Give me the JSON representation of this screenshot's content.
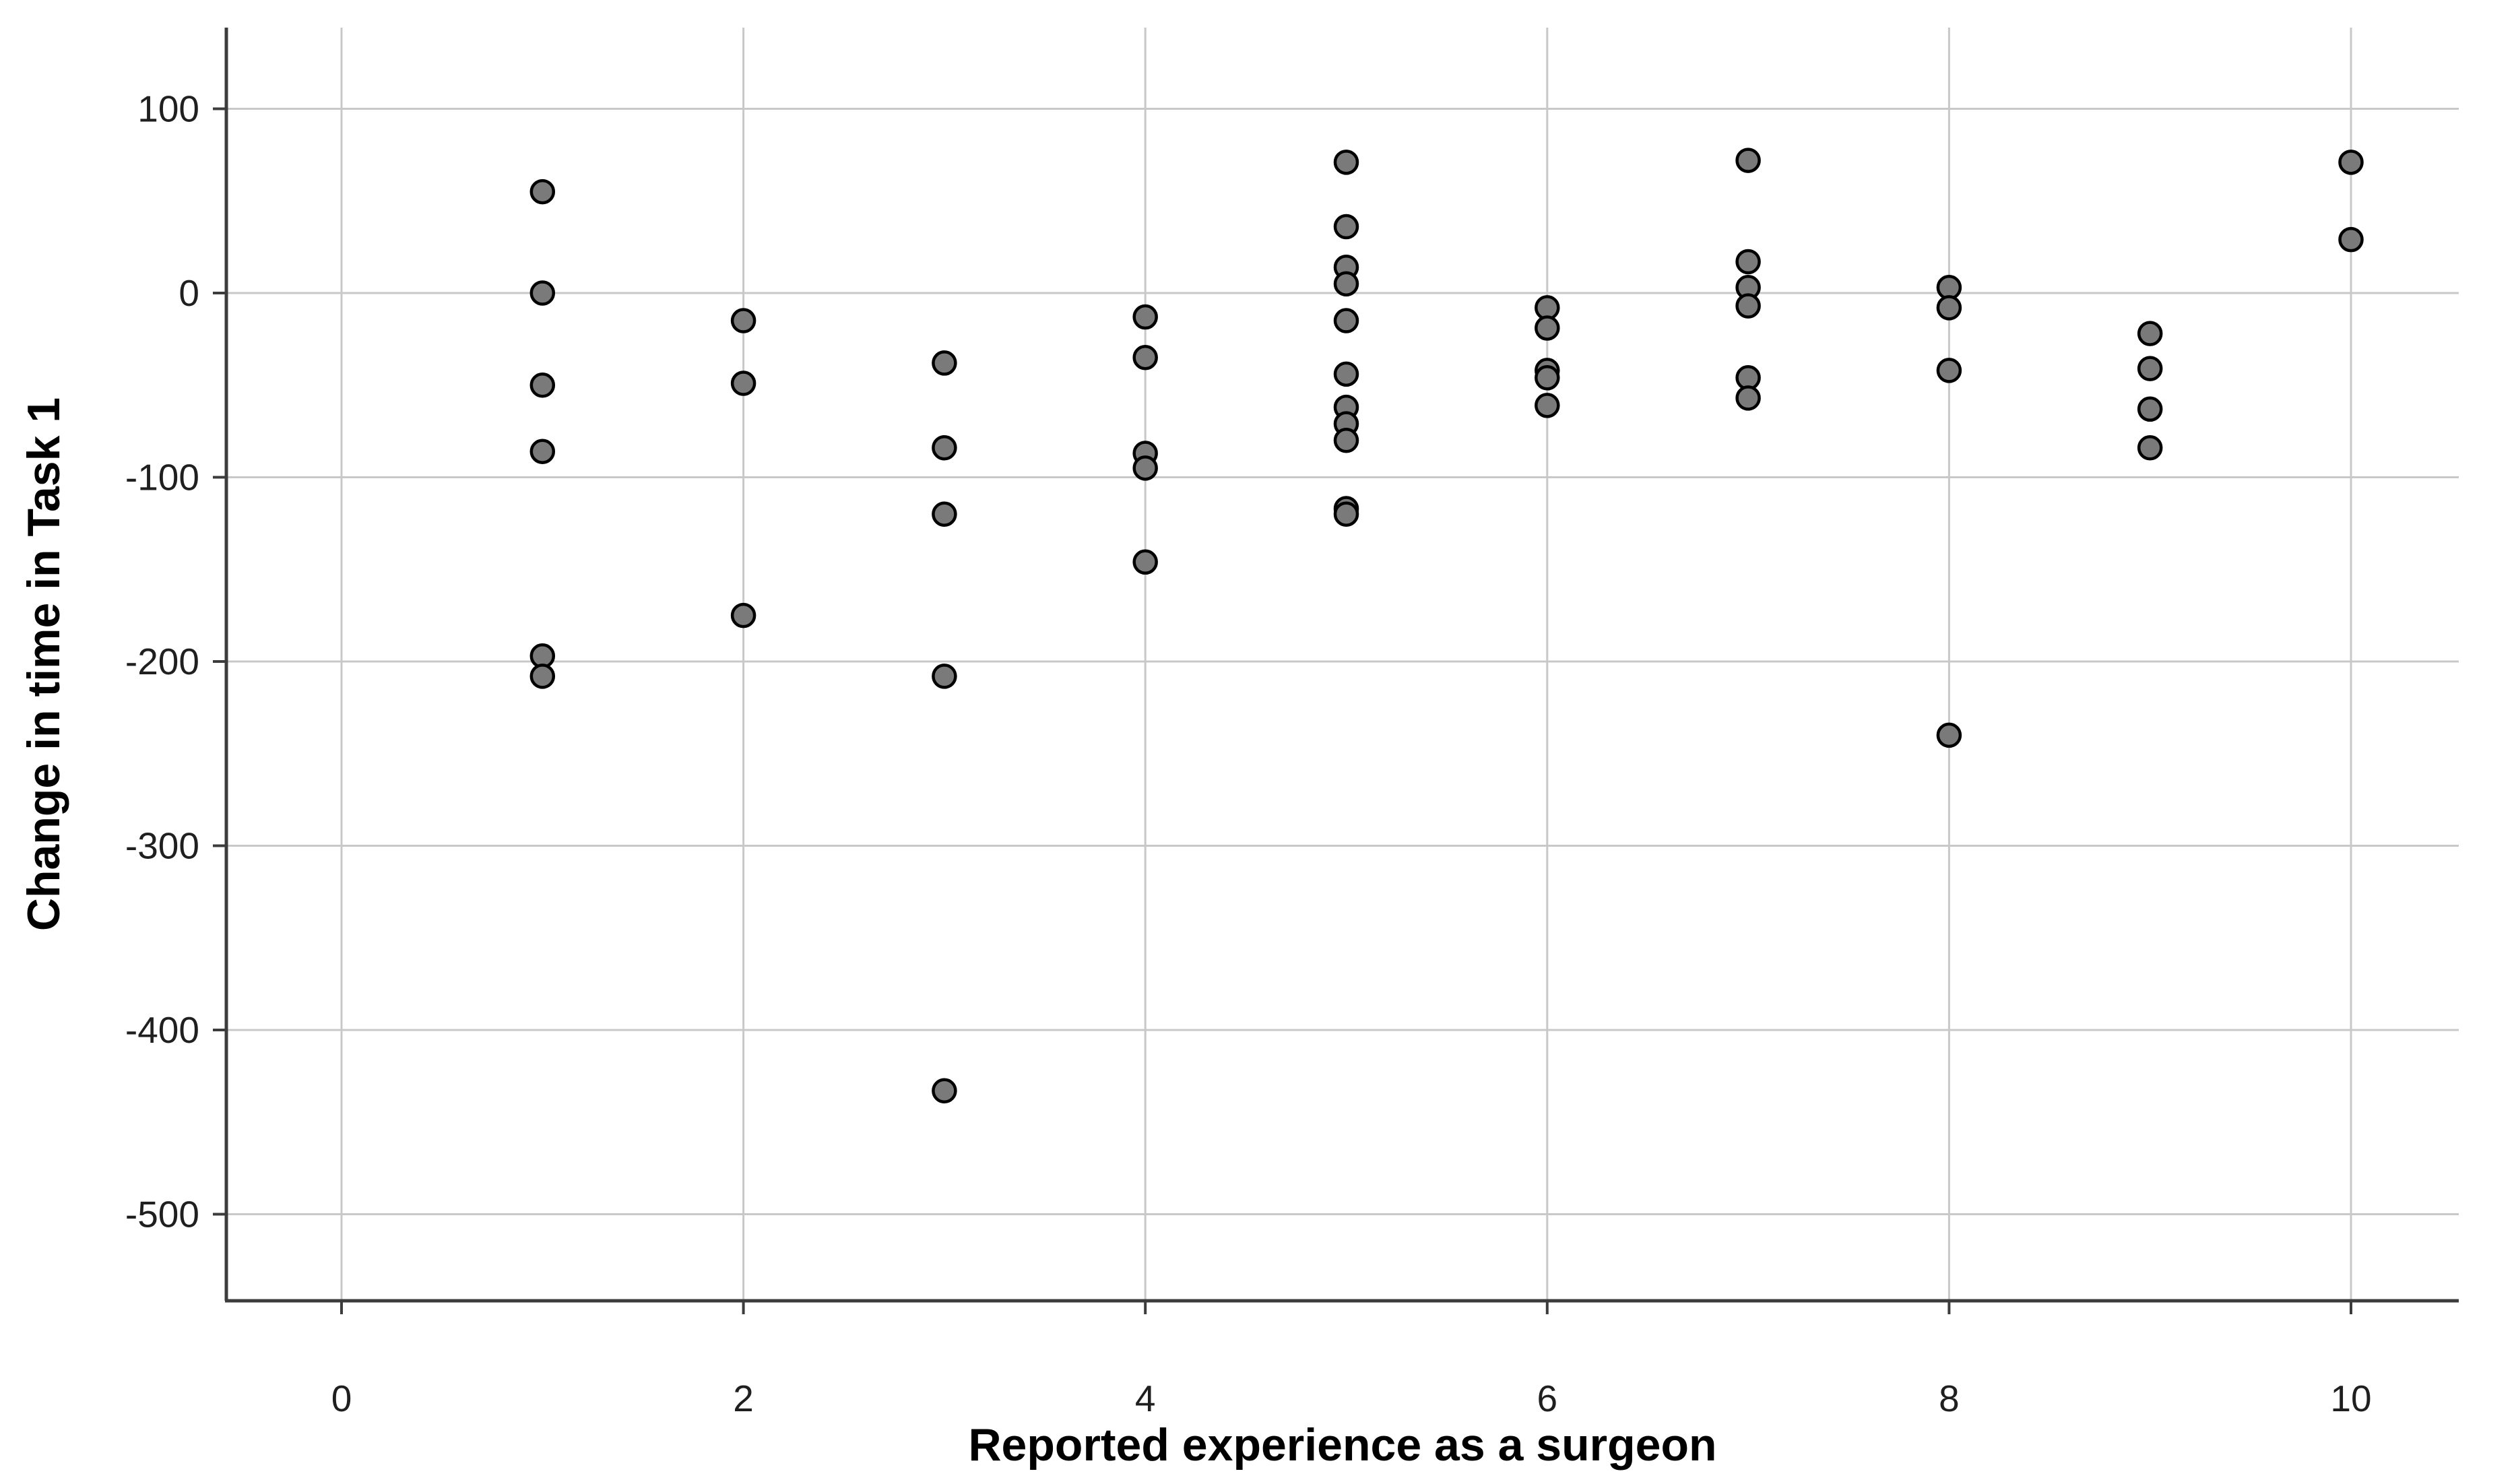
{
  "chart_data": {
    "type": "scatter",
    "title": "",
    "xlabel": "Reported experience as a surgeon",
    "ylabel": "Change in time in Task 1",
    "x_ticks": [
      0,
      2,
      4,
      6,
      8,
      10
    ],
    "y_ticks": [
      100,
      0,
      -100,
      -200,
      -300,
      -400,
      -500
    ],
    "xlim": [
      -0.57,
      10.54
    ],
    "ylim": [
      -547,
      144
    ],
    "grid": true,
    "legend_position": "none",
    "points": [
      {
        "x": 1,
        "y": 55
      },
      {
        "x": 1,
        "y": 0
      },
      {
        "x": 1,
        "y": -50
      },
      {
        "x": 1,
        "y": -86
      },
      {
        "x": 1,
        "y": -197
      },
      {
        "x": 1,
        "y": -208
      },
      {
        "x": 2,
        "y": -15
      },
      {
        "x": 2,
        "y": -49
      },
      {
        "x": 2,
        "y": -175
      },
      {
        "x": 3,
        "y": -38
      },
      {
        "x": 3,
        "y": -84
      },
      {
        "x": 3,
        "y": -120
      },
      {
        "x": 3,
        "y": -208
      },
      {
        "x": 3,
        "y": -433
      },
      {
        "x": 4,
        "y": -13
      },
      {
        "x": 4,
        "y": -35
      },
      {
        "x": 4,
        "y": -87
      },
      {
        "x": 4,
        "y": -95
      },
      {
        "x": 4,
        "y": -146
      },
      {
        "x": 5,
        "y": 71
      },
      {
        "x": 5,
        "y": 36
      },
      {
        "x": 5,
        "y": 14
      },
      {
        "x": 5,
        "y": 5
      },
      {
        "x": 5,
        "y": -15
      },
      {
        "x": 5,
        "y": -44
      },
      {
        "x": 5,
        "y": -62
      },
      {
        "x": 5,
        "y": -71
      },
      {
        "x": 5,
        "y": -80
      },
      {
        "x": 5,
        "y": -117
      },
      {
        "x": 5,
        "y": -120
      },
      {
        "x": 6,
        "y": -8
      },
      {
        "x": 6,
        "y": -19
      },
      {
        "x": 6,
        "y": -42
      },
      {
        "x": 6,
        "y": -46
      },
      {
        "x": 6,
        "y": -61
      },
      {
        "x": 7,
        "y": 72
      },
      {
        "x": 7,
        "y": 17
      },
      {
        "x": 7,
        "y": 3
      },
      {
        "x": 7,
        "y": -7
      },
      {
        "x": 7,
        "y": -46
      },
      {
        "x": 7,
        "y": -57
      },
      {
        "x": 8,
        "y": 3
      },
      {
        "x": 8,
        "y": -8
      },
      {
        "x": 8,
        "y": -42
      },
      {
        "x": 8,
        "y": -240
      },
      {
        "x": 9,
        "y": -22
      },
      {
        "x": 9,
        "y": -41
      },
      {
        "x": 9,
        "y": -63
      },
      {
        "x": 9,
        "y": -84
      },
      {
        "x": 10,
        "y": 71
      },
      {
        "x": 10,
        "y": 29
      }
    ]
  },
  "style": {
    "background": "#ffffff",
    "gridline_color": "#c8c8c8",
    "axis_color": "#3c3c3c",
    "tick_text_color": "#1f1f1f",
    "marker_fill": "#7a7a7a",
    "marker_stroke": "#000000"
  }
}
